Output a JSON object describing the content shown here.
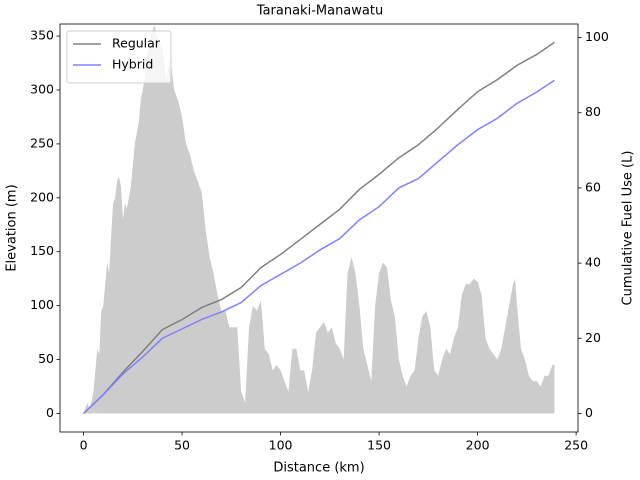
{
  "chart_data": {
    "type": "line",
    "title": "Taranaki-Manawatu",
    "x_label": "Distance (km)",
    "y_label": "Elevation (m)",
    "y2_label": "Cumulative Fuel Use (L)",
    "xlim": [
      -11.95,
      250.95
    ],
    "xticks": [
      0,
      50,
      100,
      150,
      200,
      250
    ],
    "ylim": [
      -17.2,
      361.2
    ],
    "yticks": [
      0,
      50,
      100,
      150,
      200,
      250,
      300,
      350
    ],
    "y2lim": [
      -4.93,
      103.6
    ],
    "y2ticks": [
      0,
      20,
      40,
      60,
      80,
      100
    ],
    "legend": "upper left",
    "elevation": {
      "type": "area",
      "color": "#cccccc",
      "x": [
        0,
        1,
        2,
        3,
        5,
        7,
        8,
        9,
        10,
        11,
        12,
        13,
        14,
        15,
        16,
        17,
        18,
        19,
        20,
        21,
        22,
        23,
        24,
        25,
        26,
        27,
        28,
        29,
        30,
        31,
        32,
        33,
        34,
        35,
        36,
        38,
        40,
        42,
        44,
        46,
        48,
        50,
        52,
        54,
        56,
        58,
        60,
        62,
        64,
        66,
        68,
        70,
        72,
        74,
        76,
        78,
        80,
        82,
        84,
        86,
        88,
        90,
        92,
        94,
        96,
        98,
        100,
        102,
        104,
        106,
        108,
        110,
        112,
        114,
        116,
        118,
        120,
        122,
        124,
        126,
        128,
        130,
        132,
        134,
        136,
        138,
        140,
        142,
        144,
        146,
        148,
        150,
        152,
        154,
        156,
        158,
        160,
        162,
        164,
        166,
        168,
        170,
        172,
        174,
        176,
        178,
        180,
        182,
        184,
        186,
        188,
        190,
        192,
        194,
        196,
        198,
        200,
        202,
        204,
        206,
        208,
        210,
        212,
        214,
        216,
        218,
        219,
        220,
        222,
        224,
        226,
        228,
        230,
        232,
        234,
        236,
        238,
        239
      ],
      "values": [
        0,
        5,
        10,
        3,
        20,
        60,
        55,
        95,
        100,
        120,
        140,
        130,
        165,
        195,
        200,
        215,
        220,
        210,
        180,
        195,
        190,
        200,
        210,
        230,
        250,
        260,
        270,
        290,
        300,
        310,
        330,
        340,
        350,
        355,
        360,
        345,
        340,
        310,
        330,
        300,
        290,
        275,
        250,
        240,
        225,
        215,
        205,
        170,
        145,
        130,
        110,
        95,
        95,
        80,
        80,
        80,
        20,
        10,
        80,
        100,
        95,
        105,
        60,
        55,
        40,
        45,
        40,
        30,
        20,
        60,
        60,
        40,
        40,
        20,
        40,
        75,
        80,
        85,
        75,
        80,
        65,
        60,
        50,
        130,
        145,
        130,
        100,
        60,
        45,
        30,
        100,
        130,
        140,
        135,
        105,
        90,
        50,
        35,
        25,
        35,
        40,
        70,
        90,
        95,
        80,
        40,
        35,
        50,
        60,
        55,
        70,
        80,
        110,
        120,
        120,
        125,
        122,
        110,
        70,
        60,
        55,
        50,
        60,
        80,
        100,
        120,
        125,
        100,
        60,
        50,
        35,
        30,
        30,
        25,
        35,
        35,
        45,
        45
      ]
    },
    "series": [
      {
        "name": "Regular",
        "color": "#808080",
        "axis": "y2",
        "x": [
          0,
          10,
          20,
          30,
          40,
          50,
          60,
          70,
          80,
          90,
          100,
          110,
          120,
          130,
          140,
          150,
          160,
          170,
          180,
          190,
          200,
          210,
          220,
          230,
          239
        ],
        "values": [
          0,
          5,
          11,
          16.5,
          22.3,
          25,
          28.2,
          30.3,
          33.5,
          38.8,
          42.3,
          46.3,
          50.3,
          54.3,
          59.6,
          63.6,
          68,
          71.5,
          76,
          80.9,
          85.6,
          88.8,
          92.6,
          95.5,
          98.7
        ]
      },
      {
        "name": "Hybrid",
        "color": "#8080ff",
        "axis": "y2",
        "x": [
          0,
          10,
          20,
          30,
          40,
          50,
          60,
          70,
          80,
          90,
          100,
          110,
          120,
          130,
          140,
          150,
          160,
          170,
          180,
          190,
          200,
          210,
          220,
          230,
          239
        ],
        "values": [
          0,
          5,
          10.5,
          15,
          20,
          22.5,
          25,
          27,
          29.5,
          34,
          37,
          40,
          43.5,
          46.5,
          51.5,
          55,
          60,
          62.5,
          67,
          71.5,
          75.5,
          78.5,
          82.5,
          85.5,
          88.6
        ]
      }
    ]
  }
}
